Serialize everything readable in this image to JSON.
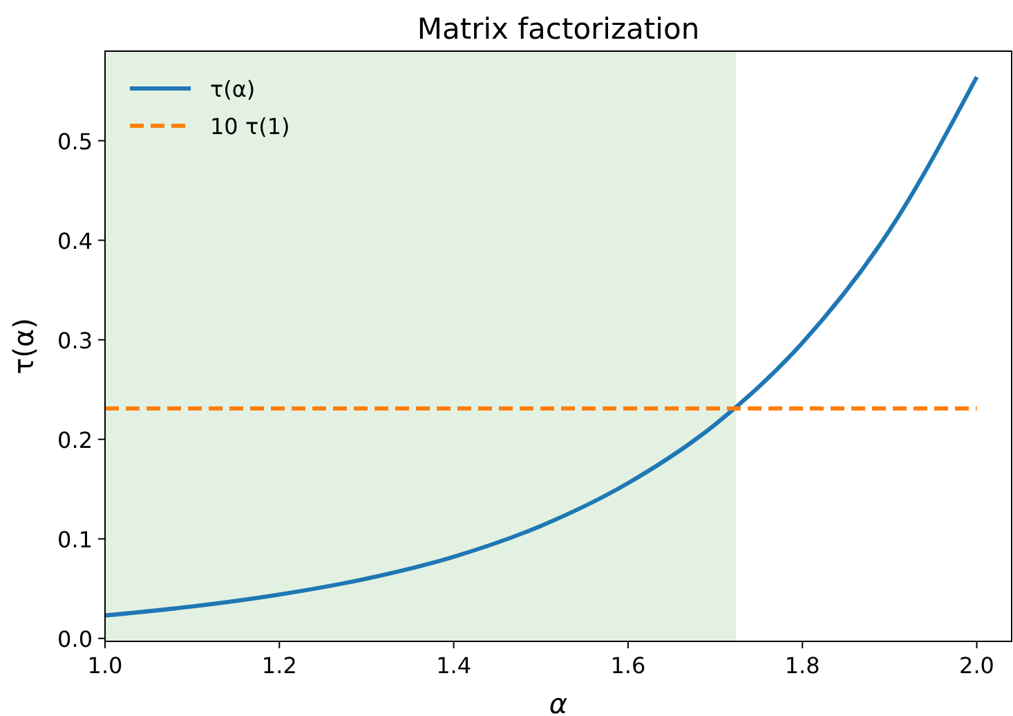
{
  "chart_data": {
    "type": "line",
    "title": "Matrix factorization",
    "xlabel": "α",
    "ylabel": "τ(α)",
    "xlim": [
      1.0,
      2.04
    ],
    "ylim": [
      -0.003,
      0.59
    ],
    "xticks": [
      {
        "value": 1.0,
        "label": "1.0"
      },
      {
        "value": 1.2,
        "label": "1.2"
      },
      {
        "value": 1.4,
        "label": "1.4"
      },
      {
        "value": 1.6,
        "label": "1.6"
      },
      {
        "value": 1.8,
        "label": "1.8"
      },
      {
        "value": 2.0,
        "label": "2.0"
      }
    ],
    "yticks": [
      {
        "value": 0,
        "label": "0.0"
      },
      {
        "value": 0.1,
        "label": "0.1"
      },
      {
        "value": 0.2,
        "label": "0.2"
      },
      {
        "value": 0.3,
        "label": "0.3"
      },
      {
        "value": 0.4,
        "label": "0.4"
      },
      {
        "value": 0.5,
        "label": "0.5"
      }
    ],
    "series": [
      {
        "name": "τ(α)",
        "color": "#1f77b4",
        "x": [
          1.0,
          1.1,
          1.2,
          1.3,
          1.4,
          1.5,
          1.6,
          1.7,
          1.8,
          1.9,
          2.0
        ],
        "values": [
          0.023,
          0.032,
          0.044,
          0.06,
          0.082,
          0.113,
          0.156,
          0.215,
          0.297,
          0.41,
          0.564
        ],
        "line_style": "solid"
      },
      {
        "name": "10 τ(1)",
        "color": "#ff7f0e",
        "x": [
          1.0,
          2.0
        ],
        "values": [
          0.231,
          0.231
        ],
        "line_style": "dashed"
      }
    ],
    "bands": [
      {
        "axis": "x",
        "from": 1.0,
        "to": 1.724,
        "color": "#e2f1e2"
      }
    ],
    "legend": "top left",
    "grid": false
  }
}
